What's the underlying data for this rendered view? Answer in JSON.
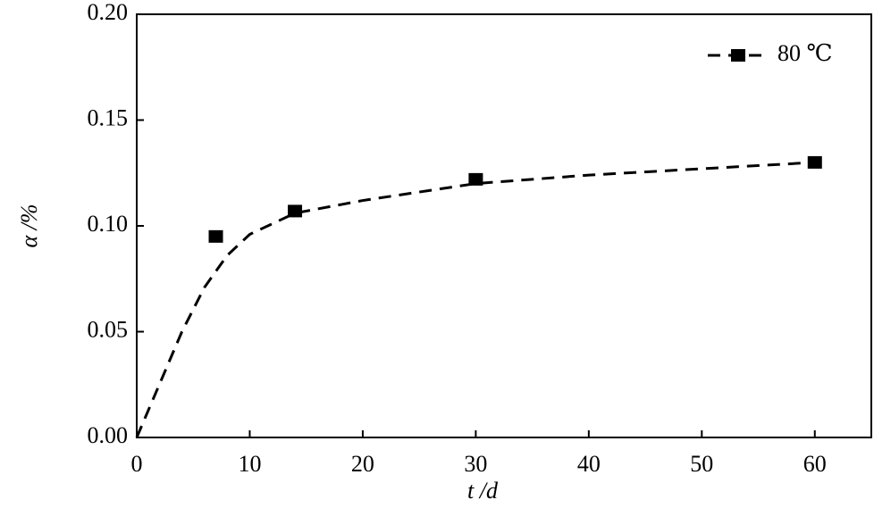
{
  "chart_data": {
    "type": "scatter",
    "xlabel": "t /d",
    "ylabel": "α /%",
    "xlim": [
      0,
      65
    ],
    "ylim": [
      0,
      0.2
    ],
    "xticks": [
      0,
      10,
      20,
      30,
      40,
      50,
      60
    ],
    "yticks": [
      {
        "value": 0,
        "label": "0.00"
      },
      {
        "value": 0.05,
        "label": "0.05"
      },
      {
        "value": 0.1,
        "label": "0.10"
      },
      {
        "value": 0.15,
        "label": "0.15"
      },
      {
        "value": 0.2,
        "label": "0.20"
      }
    ],
    "legend": "upper right",
    "series": [
      {
        "name": "80 ℃",
        "color": "#000000",
        "x": [
          7,
          14,
          30,
          60
        ],
        "values": [
          0.095,
          0.107,
          0.122,
          0.13
        ],
        "fit_x": [
          0,
          2,
          4,
          6,
          8,
          10,
          14,
          20,
          30,
          40,
          50,
          60
        ],
        "fit_values": [
          0,
          0.025,
          0.05,
          0.071,
          0.086,
          0.096,
          0.106,
          0.112,
          0.12,
          0.124,
          0.127,
          0.13
        ]
      }
    ]
  }
}
